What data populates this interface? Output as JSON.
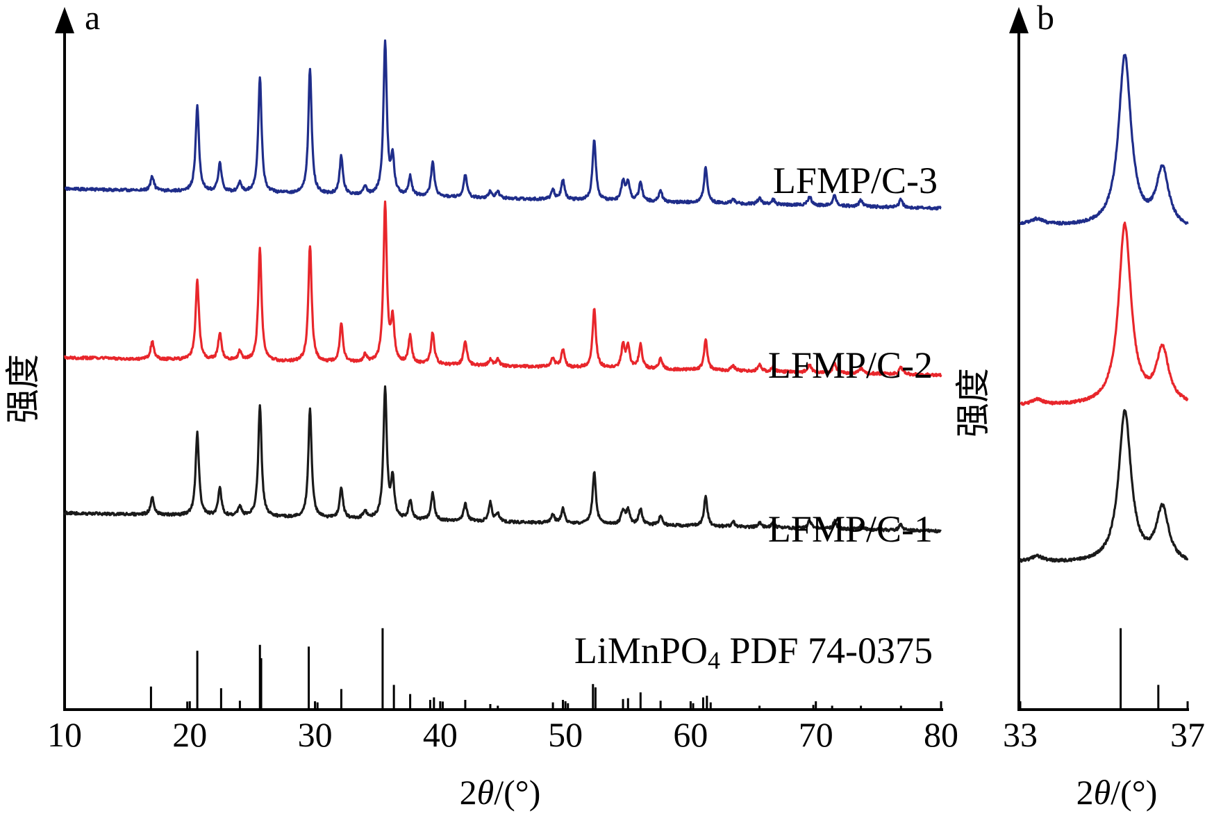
{
  "chart_data": [
    {
      "panel": "a",
      "type": "line",
      "xlabel": "2θ/(°)",
      "ylabel": "强度",
      "xlim": [
        10,
        80
      ],
      "xticks": [
        10,
        20,
        30,
        40,
        50,
        60,
        70,
        80
      ],
      "series": [
        {
          "name": "LFMP/C-3",
          "color": "#1f2d8a",
          "peaks": [
            [
              17.0,
              0.09
            ],
            [
              20.6,
              0.54
            ],
            [
              22.4,
              0.18
            ],
            [
              24.0,
              0.06
            ],
            [
              25.6,
              0.72
            ],
            [
              29.6,
              0.78
            ],
            [
              32.1,
              0.24
            ],
            [
              34.0,
              0.05
            ],
            [
              35.6,
              0.96
            ],
            [
              36.2,
              0.22
            ],
            [
              37.6,
              0.12
            ],
            [
              39.4,
              0.22
            ],
            [
              42.0,
              0.14
            ],
            [
              44.0,
              0.04
            ],
            [
              44.6,
              0.04
            ],
            [
              49.0,
              0.06
            ],
            [
              49.8,
              0.12
            ],
            [
              52.3,
              0.38
            ],
            [
              54.6,
              0.12
            ],
            [
              55.0,
              0.12
            ],
            [
              56.0,
              0.12
            ],
            [
              57.6,
              0.07
            ],
            [
              61.2,
              0.22
            ],
            [
              63.4,
              0.03
            ],
            [
              65.5,
              0.04
            ],
            [
              66.6,
              0.03
            ],
            [
              69.5,
              0.06
            ],
            [
              71.5,
              0.07
            ],
            [
              73.6,
              0.04
            ],
            [
              76.8,
              0.05
            ]
          ]
        },
        {
          "name": "LFMP/C-2",
          "color": "#e8262b",
          "peaks": [
            [
              17.0,
              0.11
            ],
            [
              20.6,
              0.5
            ],
            [
              22.4,
              0.17
            ],
            [
              24.0,
              0.06
            ],
            [
              25.6,
              0.7
            ],
            [
              29.6,
              0.73
            ],
            [
              32.1,
              0.24
            ],
            [
              34.0,
              0.05
            ],
            [
              35.6,
              1.0
            ],
            [
              36.2,
              0.26
            ],
            [
              37.6,
              0.17
            ],
            [
              39.4,
              0.2
            ],
            [
              42.0,
              0.15
            ],
            [
              44.0,
              0.04
            ],
            [
              44.6,
              0.04
            ],
            [
              49.0,
              0.06
            ],
            [
              49.8,
              0.11
            ],
            [
              52.3,
              0.37
            ],
            [
              54.6,
              0.14
            ],
            [
              55.0,
              0.14
            ],
            [
              56.0,
              0.15
            ],
            [
              57.6,
              0.07
            ],
            [
              61.2,
              0.19
            ],
            [
              63.4,
              0.03
            ],
            [
              65.5,
              0.04
            ],
            [
              66.6,
              0.03
            ],
            [
              69.5,
              0.05
            ],
            [
              71.5,
              0.06
            ],
            [
              73.6,
              0.03
            ],
            [
              76.8,
              0.04
            ]
          ]
        },
        {
          "name": "LFMP/C-1",
          "color": "#1a1a1a",
          "peaks": [
            [
              17.0,
              0.11
            ],
            [
              20.6,
              0.52
            ],
            [
              22.4,
              0.17
            ],
            [
              24.0,
              0.06
            ],
            [
              25.6,
              0.7
            ],
            [
              29.6,
              0.68
            ],
            [
              32.1,
              0.19
            ],
            [
              34.0,
              0.05
            ],
            [
              35.6,
              0.82
            ],
            [
              36.2,
              0.24
            ],
            [
              37.6,
              0.12
            ],
            [
              39.4,
              0.17
            ],
            [
              42.0,
              0.11
            ],
            [
              44.0,
              0.12
            ],
            [
              44.6,
              0.05
            ],
            [
              49.0,
              0.05
            ],
            [
              49.8,
              0.09
            ],
            [
              52.3,
              0.32
            ],
            [
              54.6,
              0.09
            ],
            [
              55.0,
              0.09
            ],
            [
              56.0,
              0.1
            ],
            [
              57.6,
              0.06
            ],
            [
              61.2,
              0.19
            ],
            [
              63.4,
              0.03
            ],
            [
              65.5,
              0.03
            ],
            [
              66.6,
              0.03
            ],
            [
              69.5,
              0.05
            ],
            [
              71.5,
              0.05
            ],
            [
              73.6,
              0.03
            ],
            [
              76.8,
              0.04
            ]
          ]
        }
      ],
      "reference": {
        "name": "LiMnPO₄ PDF 74-0375",
        "peaks": [
          [
            16.9,
            0.26
          ],
          [
            19.8,
            0.08
          ],
          [
            20.6,
            0.69
          ],
          [
            22.5,
            0.24
          ],
          [
            24.0,
            0.09
          ],
          [
            25.6,
            0.76
          ],
          [
            25.7,
            0.6
          ],
          [
            29.5,
            0.74
          ],
          [
            30.2,
            0.07
          ],
          [
            32.1,
            0.23
          ],
          [
            35.4,
            0.96
          ],
          [
            36.3,
            0.28
          ],
          [
            37.6,
            0.17
          ],
          [
            39.2,
            0.1
          ],
          [
            39.5,
            0.13
          ],
          [
            40.2,
            0.08
          ],
          [
            42.0,
            0.1
          ],
          [
            44.0,
            0.05
          ],
          [
            44.6,
            0.03
          ],
          [
            49.0,
            0.07
          ],
          [
            49.8,
            0.1
          ],
          [
            50.2,
            0.06
          ],
          [
            52.2,
            0.29
          ],
          [
            52.4,
            0.25
          ],
          [
            54.6,
            0.11
          ],
          [
            55.0,
            0.12
          ],
          [
            56.0,
            0.19
          ],
          [
            57.6,
            0.09
          ],
          [
            60.2,
            0.06
          ],
          [
            61.0,
            0.13
          ],
          [
            61.3,
            0.15
          ],
          [
            61.6,
            0.07
          ],
          [
            65.5,
            0.03
          ],
          [
            69.8,
            0.04
          ],
          [
            71.3,
            0.03
          ],
          [
            73.6,
            0.03
          ],
          [
            76.8,
            0.03
          ]
        ]
      }
    },
    {
      "panel": "b",
      "type": "line",
      "xlabel": "2θ/(°)",
      "ylabel": "强度",
      "xlim": [
        33,
        37
      ],
      "xticks": [
        33,
        37
      ],
      "series": [
        {
          "name": "LFMP/C-3",
          "color": "#1f2d8a",
          "peaks": [
            [
              33.4,
              0.03
            ],
            [
              35.5,
              0.95
            ],
            [
              36.4,
              0.32
            ]
          ]
        },
        {
          "name": "LFMP/C-2",
          "color": "#e8262b",
          "peaks": [
            [
              33.4,
              0.03
            ],
            [
              35.5,
              1.0
            ],
            [
              36.4,
              0.3
            ]
          ]
        },
        {
          "name": "LFMP/C-1",
          "color": "#1a1a1a",
          "peaks": [
            [
              33.4,
              0.03
            ],
            [
              35.5,
              0.84
            ],
            [
              36.4,
              0.3
            ]
          ]
        }
      ],
      "reference": {
        "peaks": [
          [
            35.4,
            0.96
          ],
          [
            36.3,
            0.28
          ]
        ]
      }
    }
  ],
  "labels": {
    "panel_a": "a",
    "panel_b": "b",
    "xtitle_prefix": "2",
    "xtitle_theta": "θ",
    "xtitle_suffix": "/(°)",
    "ylabel": "强度",
    "series_3": "LFMP/C-3",
    "series_2": "LFMP/C-2",
    "series_1": "LFMP/C-1",
    "ref_prefix": "LiMnPO",
    "ref_sub": "4",
    "ref_suffix": " PDF   74-0375"
  }
}
